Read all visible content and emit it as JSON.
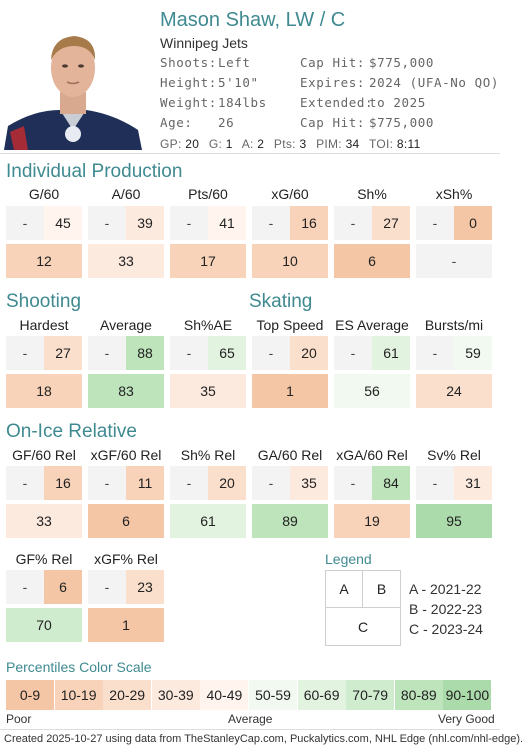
{
  "player": {
    "name": "Mason Shaw, LW / C",
    "team": "Winnipeg Jets",
    "shoots_label": "Shoots:",
    "shoots": "Left",
    "height_label": "Height:",
    "height": "5'10\"",
    "weight_label": "Weight:",
    "weight": "184lbs",
    "age_label": "Age:",
    "age": "26",
    "caphit_label": "Cap Hit:",
    "caphit": "$775,000",
    "expires_label": "Expires:",
    "expires": "2024 (UFA-No QO)",
    "extended_label": "Extended:",
    "extended": "to 2025",
    "caphit2_label": "Cap Hit:",
    "caphit2": "$775,000"
  },
  "statline": {
    "gp_label": "GP:",
    "gp": "20",
    "g_label": "G:",
    "g": "1",
    "a_label": "A:",
    "a": "2",
    "pts_label": "Pts:",
    "pts": "3",
    "pim_label": "PIM:",
    "pim": "34",
    "toi_label": "TOI:",
    "toi": "8:11"
  },
  "sections": {
    "individual": "Individual Production",
    "shooting": "Shooting",
    "skating": "Skating",
    "onice": "On-Ice Relative"
  },
  "individual": [
    {
      "label": "G/60",
      "a": "-",
      "b": "45",
      "c": "12"
    },
    {
      "label": "A/60",
      "a": "-",
      "b": "39",
      "c": "33"
    },
    {
      "label": "Pts/60",
      "a": "-",
      "b": "41",
      "c": "17"
    },
    {
      "label": "xG/60",
      "a": "-",
      "b": "16",
      "c": "10"
    },
    {
      "label": "Sh%",
      "a": "-",
      "b": "27",
      "c": "6"
    },
    {
      "label": "xSh%",
      "a": "-",
      "b": "0",
      "c": "-"
    }
  ],
  "shooting_skating": [
    {
      "label": "Hardest",
      "a": "-",
      "b": "27",
      "c": "18"
    },
    {
      "label": "Average",
      "a": "-",
      "b": "88",
      "c": "83"
    },
    {
      "label": "Sh%AE",
      "a": "-",
      "b": "65",
      "c": "35"
    },
    {
      "label": "Top Speed",
      "a": "-",
      "b": "20",
      "c": "1"
    },
    {
      "label": "ES Average",
      "a": "-",
      "b": "61",
      "c": "56"
    },
    {
      "label": "Bursts/mi",
      "a": "-",
      "b": "59",
      "c": "24"
    }
  ],
  "onice": [
    {
      "label": "GF/60 Rel",
      "a": "-",
      "b": "16",
      "c": "33"
    },
    {
      "label": "xGF/60 Rel",
      "a": "-",
      "b": "11",
      "c": "6"
    },
    {
      "label": "Sh% Rel",
      "a": "-",
      "b": "20",
      "c": "61"
    },
    {
      "label": "GA/60 Rel",
      "a": "-",
      "b": "35",
      "c": "89"
    },
    {
      "label": "xGA/60 Rel",
      "a": "-",
      "b": "84",
      "c": "19"
    },
    {
      "label": "Sv% Rel",
      "a": "-",
      "b": "31",
      "c": "95"
    }
  ],
  "onice2": [
    {
      "label": "GF% Rel",
      "a": "-",
      "b": "6",
      "c": "70"
    },
    {
      "label": "xGF% Rel",
      "a": "-",
      "b": "23",
      "c": "1"
    }
  ],
  "legend": {
    "title": "Legend",
    "a": "A",
    "b": "B",
    "c": "C",
    "a_text": "A - 2021-22",
    "b_text": "B - 2022-23",
    "c_text": "C - 2023-24"
  },
  "scale": {
    "title": "Percentiles Color Scale",
    "bins": [
      "0-9",
      "10-19",
      "20-29",
      "30-39",
      "40-49",
      "50-59",
      "60-69",
      "70-79",
      "80-89",
      "90-100"
    ],
    "colors": [
      "#f5c6a6",
      "#f8d3b9",
      "#fadfcc",
      "#fdeadf",
      "#fff5ee",
      "#f2f9f1",
      "#e2f3df",
      "#d0ecce",
      "#bee4bc",
      "#abdbaa"
    ],
    "poor": "Poor",
    "average": "Average",
    "very_good": "Very Good"
  },
  "footer": "Created 2025-10-27 using data from TheStanleyCap.com, Puckalytics.com, NHL Edge (nhl.com/nhl-edge)."
}
